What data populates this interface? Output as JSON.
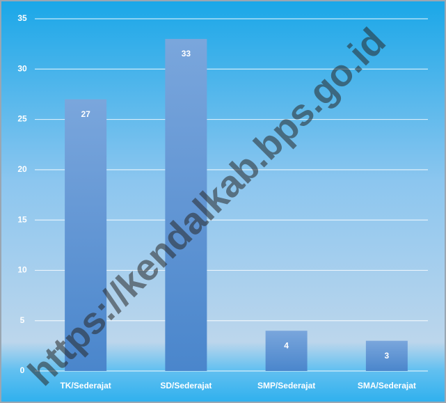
{
  "chart_data": {
    "type": "bar",
    "categories": [
      "TK/Sederajat",
      "SD/Sederajat",
      "SMP/Sederajat",
      "SMA/Sederajat"
    ],
    "values": [
      27,
      33,
      4,
      3
    ],
    "color": "#5b8fd2",
    "ylim": [
      0,
      35
    ],
    "yticks": [
      0,
      5,
      10,
      15,
      20,
      25,
      30,
      35
    ],
    "grid": true,
    "watermark": "https://kendalkab.bps.go.id"
  }
}
